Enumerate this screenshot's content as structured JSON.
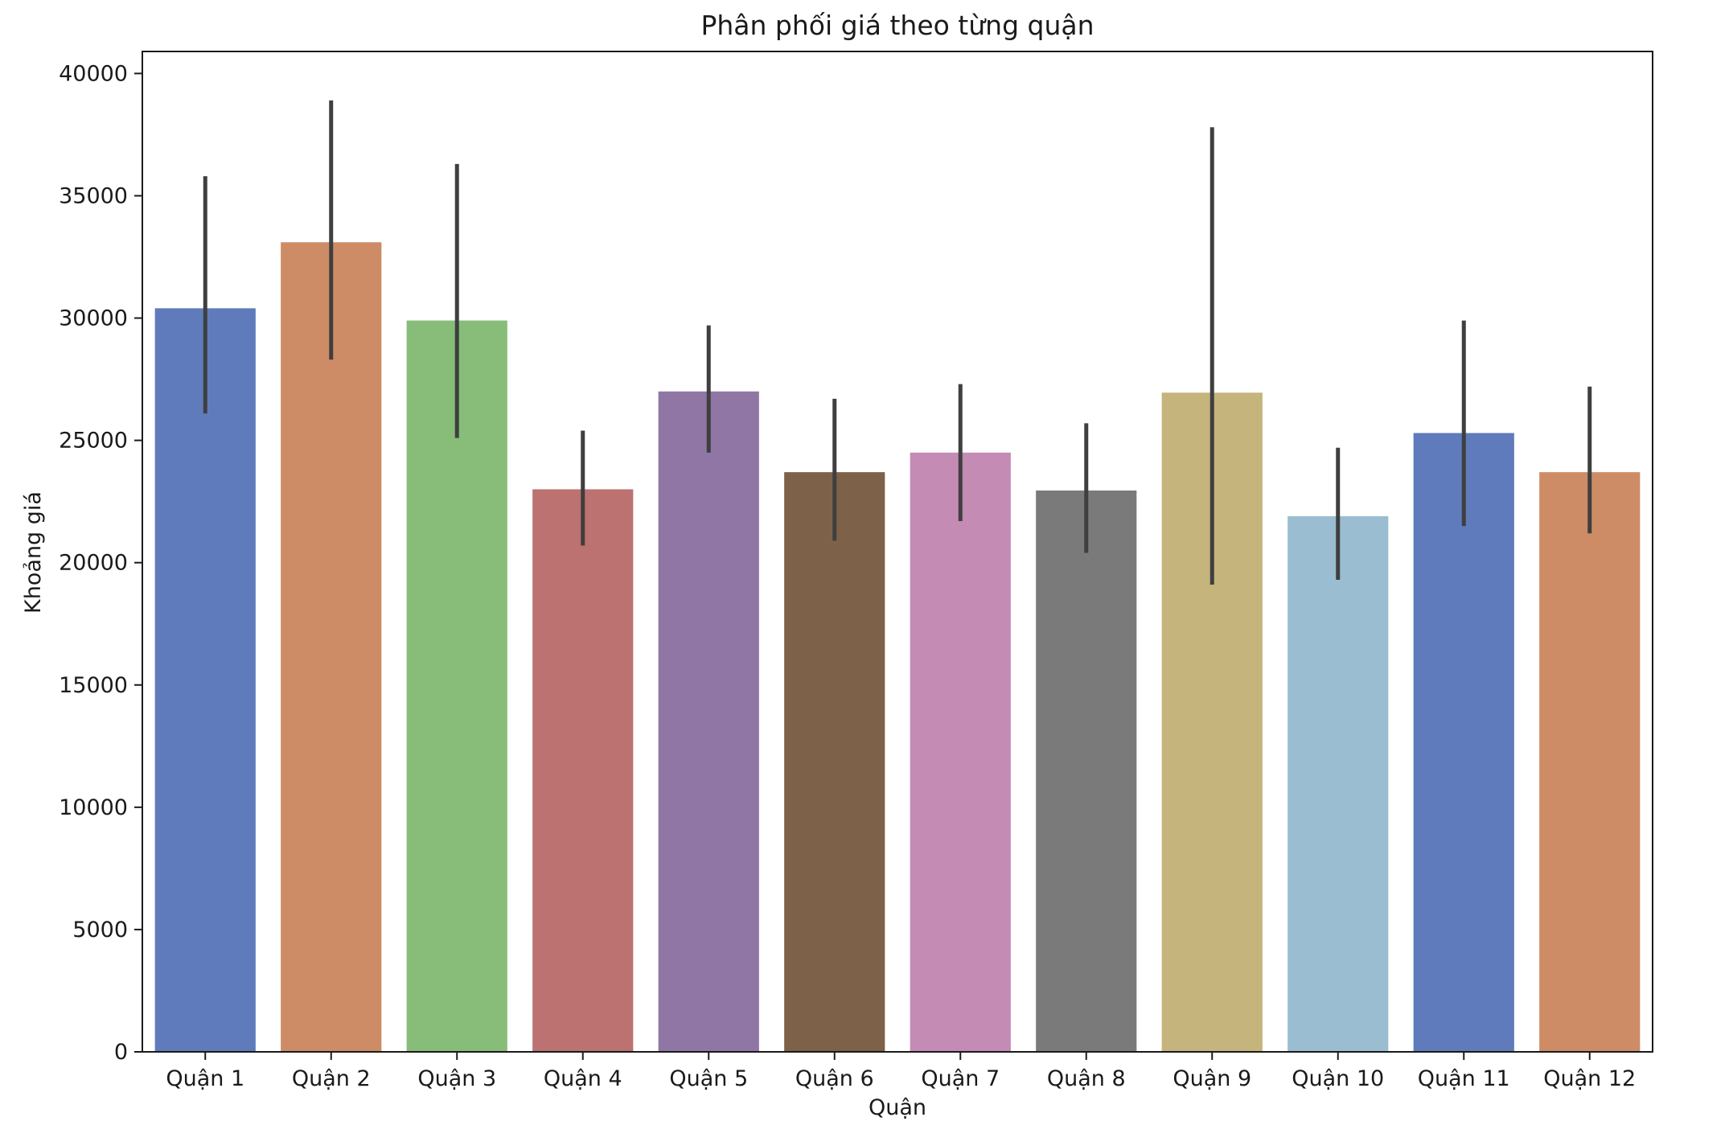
{
  "chart_data": {
    "type": "bar",
    "title": "Phân phối giá theo từng quận",
    "xlabel": "Quận",
    "ylabel": "Khoảng giá",
    "categories": [
      "Quận 1",
      "Quận 2",
      "Quận 3",
      "Quận 4",
      "Quận 5",
      "Quận 6",
      "Quận 7",
      "Quận 8",
      "Quận 9",
      "Quận 10",
      "Quận 11",
      "Quận 12"
    ],
    "values": [
      30400,
      33100,
      29900,
      23000,
      27000,
      23700,
      24500,
      22950,
      26950,
      21900,
      25300,
      23700
    ],
    "error_low": [
      26100,
      28300,
      25100,
      20700,
      24500,
      20900,
      21700,
      20400,
      19100,
      19300,
      21500,
      21200
    ],
    "error_high": [
      35800,
      38900,
      36300,
      25400,
      29700,
      26700,
      27300,
      25700,
      37800,
      24700,
      29900,
      27200
    ],
    "colors": [
      "#5f7bbb",
      "#cd8c65",
      "#87bd79",
      "#bb7270",
      "#9076a4",
      "#7d6249",
      "#c48bb5",
      "#7a7a7a",
      "#c5b47b",
      "#9abdd1",
      "#5f7bbb",
      "#cd8c65"
    ],
    "error_color": "#3f3f3f",
    "ylim": [
      0,
      40900
    ],
    "yticks": [
      0,
      5000,
      10000,
      15000,
      20000,
      25000,
      30000,
      35000,
      40000
    ],
    "grid": false,
    "legend": false
  }
}
